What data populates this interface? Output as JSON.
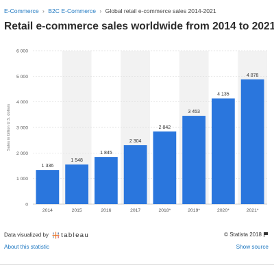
{
  "breadcrumb": {
    "items": [
      "E-Commerce",
      "B2C E-Commerce",
      "Global retail e-commerce sales 2014-2021"
    ],
    "separator": "›"
  },
  "page_title": "Retail e-commerce sales worldwide from 2014 to 2021",
  "chart_data": {
    "type": "bar",
    "title": "Retail e-commerce sales worldwide from 2014 to 2021",
    "xlabel": "",
    "ylabel": "Sales in billion U.S. dollars",
    "categories": [
      "2014",
      "2015",
      "2016",
      "2017",
      "2018*",
      "2019*",
      "2020*",
      "2021*"
    ],
    "values": [
      1336,
      1548,
      1845,
      2304,
      2842,
      3453,
      4135,
      4878
    ],
    "value_labels": [
      "1 336",
      "1 548",
      "1 845",
      "2 304",
      "2 842",
      "3 453",
      "4 135",
      "4 878"
    ],
    "ylim": [
      0,
      6000
    ],
    "yticks": [
      0,
      1000,
      2000,
      3000,
      4000,
      5000,
      6000
    ],
    "ytick_labels": [
      "0",
      "1 000",
      "2 000",
      "3 000",
      "4 000",
      "5 000",
      "6 000"
    ],
    "grid": true,
    "bar_color": "#2a76dd",
    "alt_band_color": "#f2f2f2"
  },
  "footer": {
    "data_visualized_by": "Data visualized by",
    "tableau_word": "tableau",
    "copyright": "© Statista 2018",
    "about_link": "About this statistic",
    "show_source_link": "Show source"
  },
  "colors": {
    "link": "#1f78c1",
    "bar": "#2a76dd"
  }
}
